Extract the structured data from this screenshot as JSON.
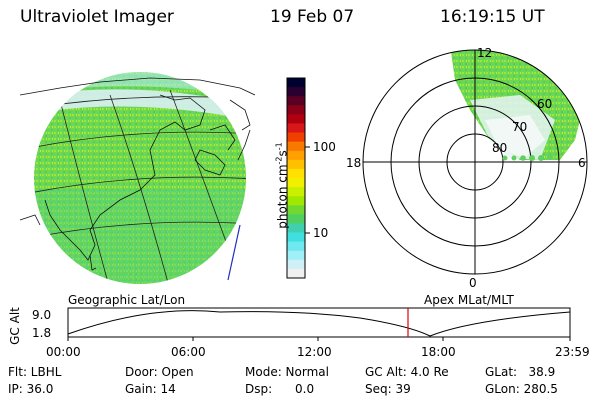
{
  "header": {
    "instrument": "Ultraviolet Imager",
    "date": "19 Feb 07",
    "time": "16:19:15 UT"
  },
  "colorbar": {
    "unit_label": "photon cm",
    "unit_exp1": "-2",
    "unit_s": "s",
    "unit_exp2": "-1",
    "ticks": [
      "100",
      "10"
    ],
    "colors": [
      "#000030",
      "#2a0030",
      "#5a0025",
      "#8a0018",
      "#b00010",
      "#d81818",
      "#f04000",
      "#f87800",
      "#ffa000",
      "#ffc000",
      "#ffe000",
      "#f0f000",
      "#c8f000",
      "#a0e800",
      "#70d830",
      "#50d060",
      "#40d0b0",
      "#40e0e0",
      "#70e8f0",
      "#a0f0f8",
      "#d0f0f8",
      "#f0f0f0"
    ]
  },
  "polar": {
    "labels": {
      "top": "12",
      "left": "18",
      "right": "6",
      "bottom": "0"
    },
    "lat_labels": [
      "60",
      "70",
      "80"
    ]
  },
  "alt_plot": {
    "left_title": "Geographic Lat/Lon",
    "right_title": "Apex MLat/MLT",
    "y_axis": "GC Alt",
    "y_ticks": [
      "9.0",
      "1.8"
    ],
    "x_ticks": [
      "00:00",
      "06:00",
      "12:00",
      "18:00",
      "23:59"
    ],
    "marker_time": "16:19"
  },
  "status": {
    "flt": "Flt: LBHL",
    "ip": "IP: 36.0",
    "door": "Door: Open",
    "gain": "Gain: 14",
    "mode": "Mode: Normal",
    "dsp": "Dsp:      0.0",
    "gcalt": "GC Alt: 4.0 Re",
    "seq": "Seq: 39",
    "glat": "GLat:   38.9",
    "glon": "GLon: 280.5"
  }
}
